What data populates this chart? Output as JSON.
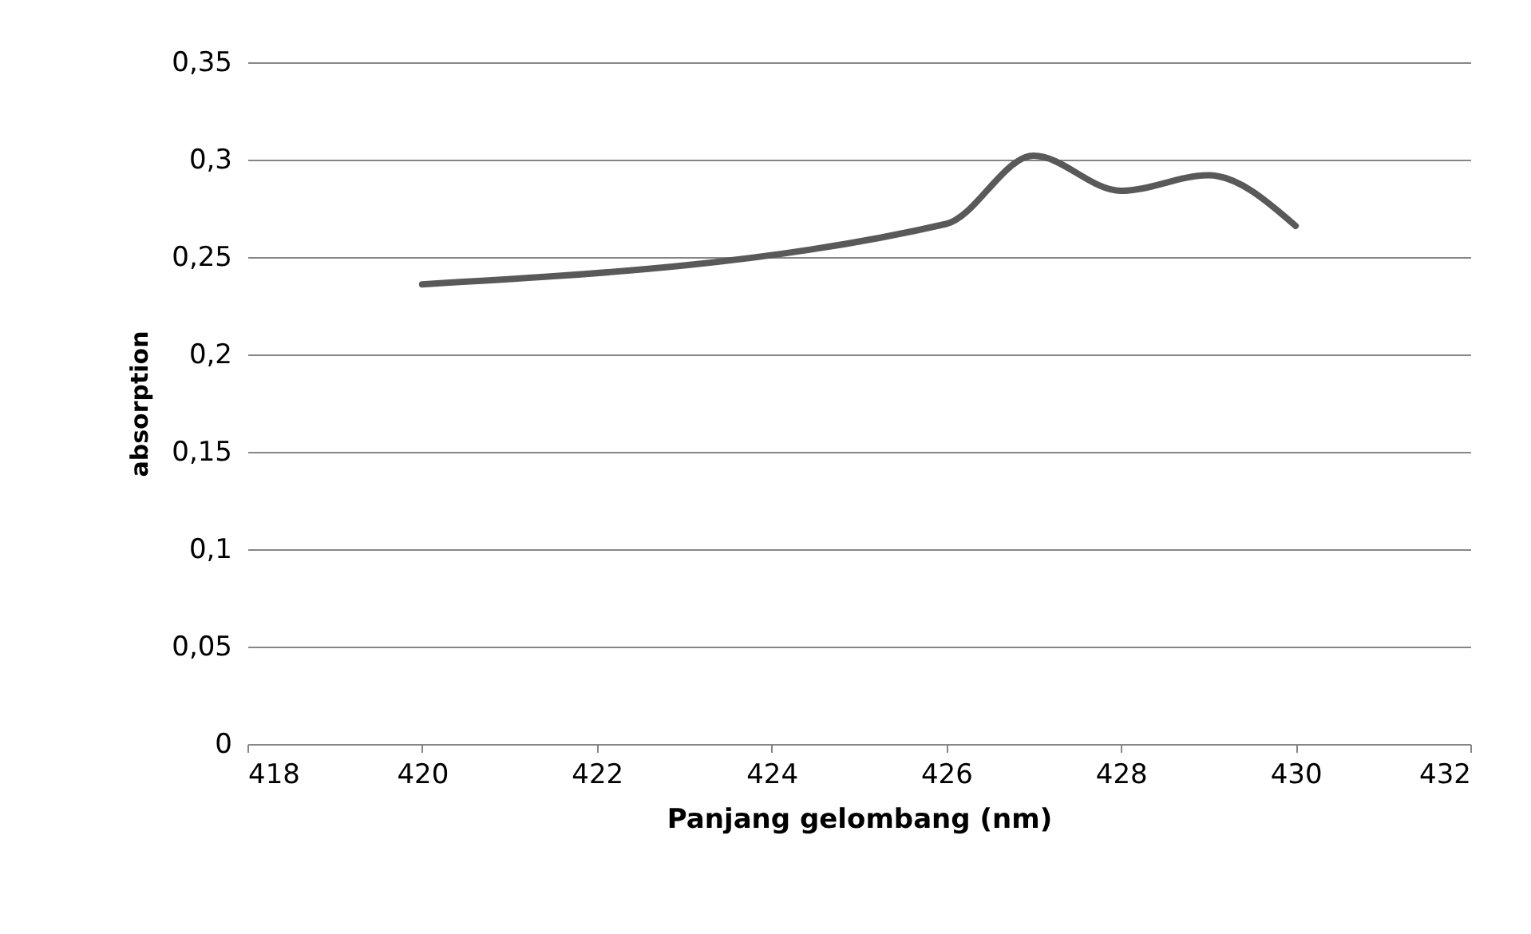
{
  "chart_data": {
    "type": "line",
    "xlabel": "Panjang gelombang (nm)",
    "ylabel": "absorption",
    "x": [
      420,
      426,
      427,
      428,
      429,
      430
    ],
    "series": [
      {
        "color": "#595959",
        "values": [
          0.236,
          0.267,
          0.302,
          0.284,
          0.292,
          0.266
        ]
      }
    ],
    "xlim": [
      418,
      432
    ],
    "xticks": [
      418,
      420,
      422,
      424,
      426,
      428,
      430,
      432
    ],
    "ylim": [
      0,
      0.35
    ],
    "yticks": [
      {
        "value": 0,
        "label": "0"
      },
      {
        "value": 0.05,
        "label": "0,05"
      },
      {
        "value": 0.1,
        "label": "0,1"
      },
      {
        "value": 0.15,
        "label": "0,15"
      },
      {
        "value": 0.2,
        "label": "0,2"
      },
      {
        "value": 0.25,
        "label": "0,25"
      },
      {
        "value": 0.3,
        "label": "0,3"
      },
      {
        "value": 0.35,
        "label": "0,35"
      }
    ],
    "grid": "y",
    "marker": "none",
    "line_style": "solid"
  }
}
